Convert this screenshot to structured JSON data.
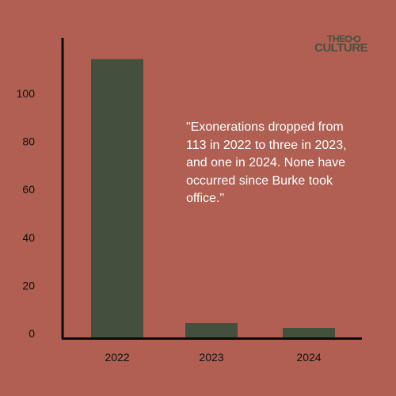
{
  "colors": {
    "background": "#b05f52",
    "bar": "#454f3d",
    "axis": "#0a0a0a",
    "text": "#111111",
    "quote": "#ffffff"
  },
  "quote": "\"Exonerations dropped from 113 in 2022 to three in 2023, and one in 2024. None have occurred since Burke took office.\"",
  "logo": {
    "line1": "THE",
    "line2": "CULTURE",
    "icon": "glasses-icon"
  },
  "chart_data": {
    "type": "bar",
    "categories": [
      "2022",
      "2023",
      "2024"
    ],
    "values": [
      113,
      3,
      1
    ],
    "title": "",
    "xlabel": "",
    "ylabel": "",
    "ylim": [
      0,
      125
    ],
    "yticks": [
      0,
      20,
      40,
      60,
      80,
      100
    ],
    "grid": false
  }
}
